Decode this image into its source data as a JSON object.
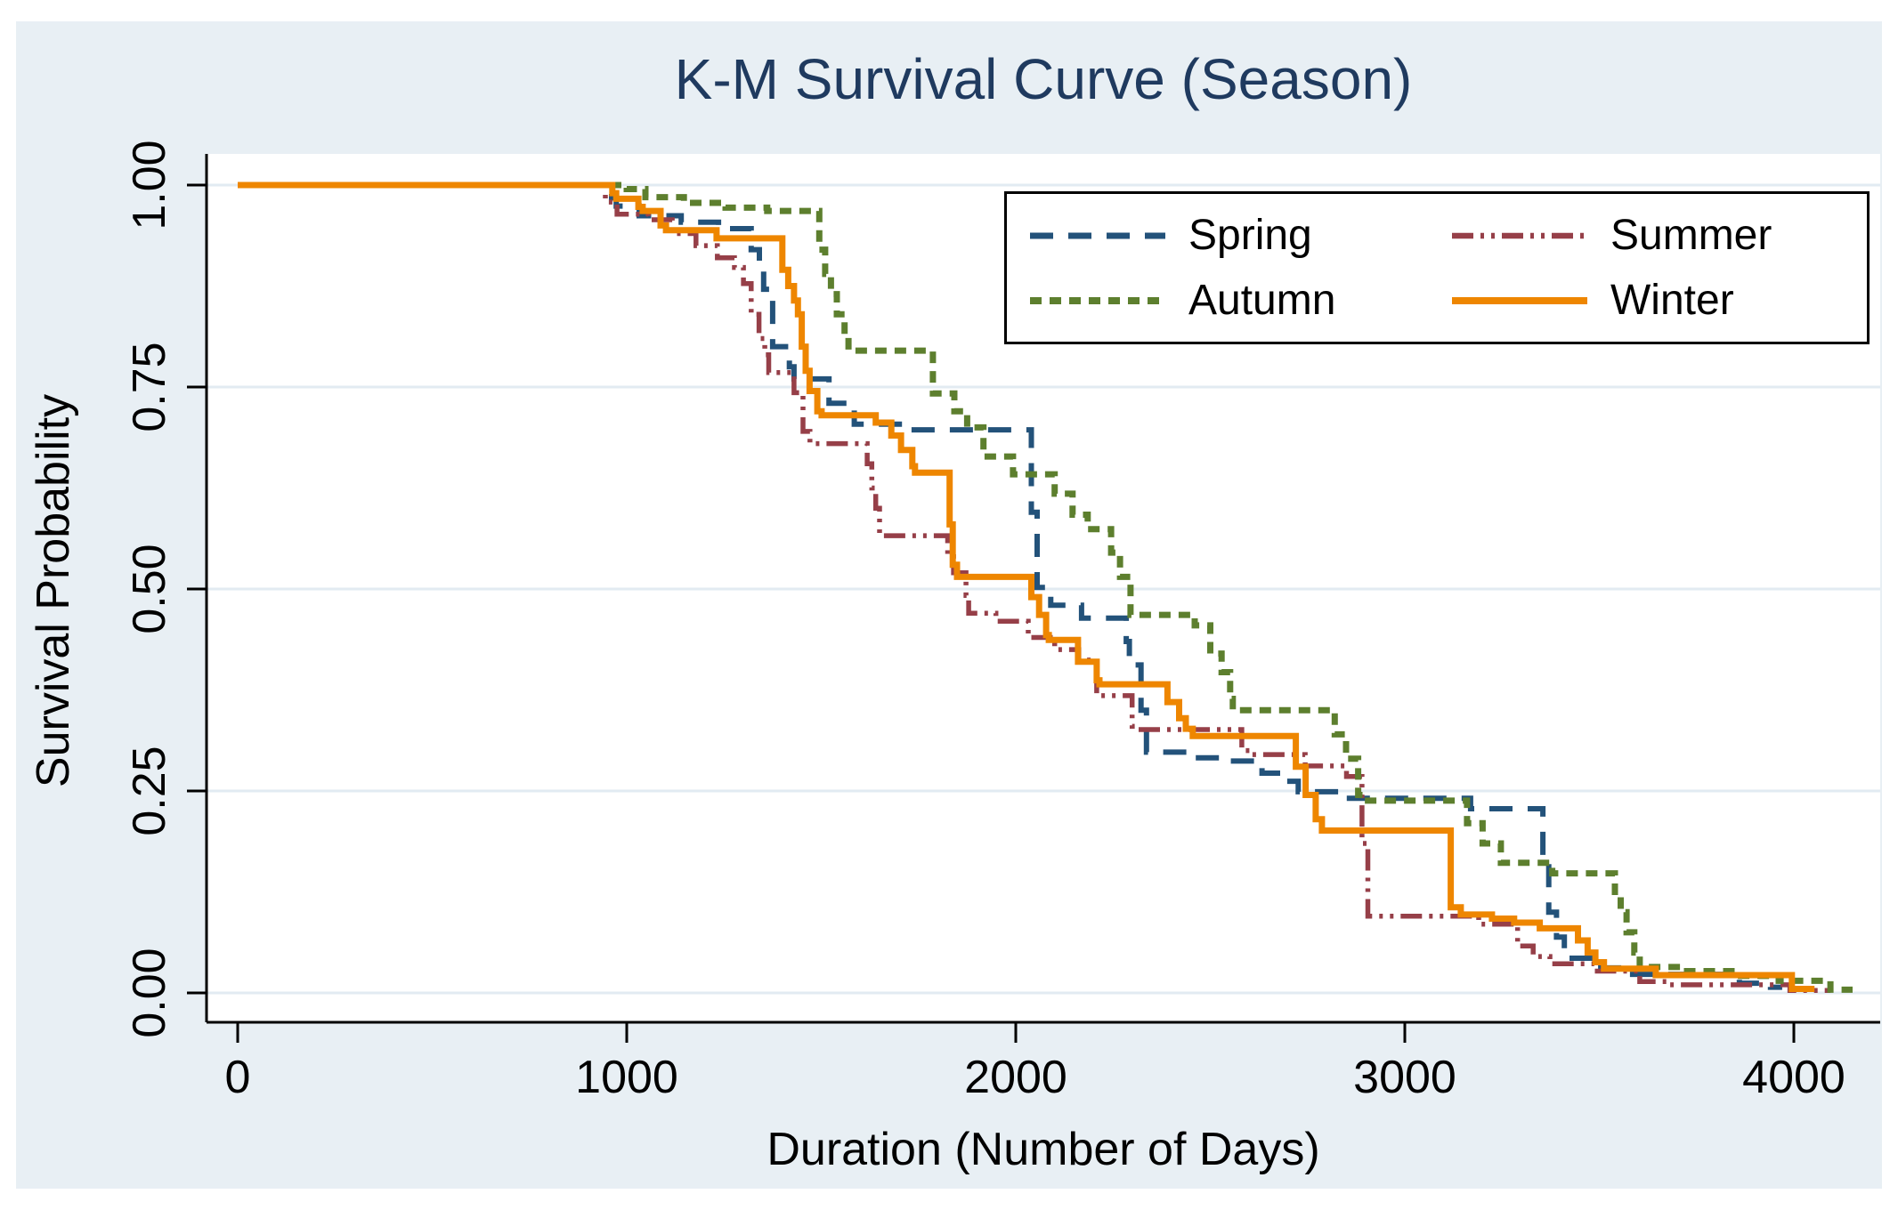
{
  "title": "K-M Survival Curve (Season)",
  "axes": {
    "x": {
      "label": "Duration (Number of Days)",
      "ticks": [
        "0",
        "1000",
        "2000",
        "3000",
        "4000"
      ],
      "tick_values": [
        0,
        1000,
        2000,
        3000,
        4000
      ],
      "range": [
        0,
        4229
      ]
    },
    "y": {
      "label": "Survival Probability",
      "ticks": [
        "0.00",
        "0.25",
        "0.50",
        "0.75",
        "1.00"
      ],
      "tick_values": [
        0,
        0.25,
        0.5,
        0.75,
        1.0
      ],
      "range": [
        0,
        1.04
      ]
    }
  },
  "legend": {
    "position": "top-right",
    "items": [
      {
        "label": "Spring"
      },
      {
        "label": "Summer"
      },
      {
        "label": "Autumn"
      },
      {
        "label": "Winter"
      }
    ]
  },
  "colors": {
    "page_bg": "#ffffff",
    "canvas_bg": "#e8eff4",
    "plot_bg": "#ffffff",
    "gridline": "#e2ebf2",
    "axis": "#000000",
    "title": "#1f3a5f",
    "spring": "#23527a",
    "summer": "#963f48",
    "autumn": "#5d7f2e",
    "winter": "#ee8600"
  },
  "chart_data": {
    "type": "line",
    "subtype": "kaplan-meier-step",
    "title": "K-M Survival Curve (Season)",
    "xlabel": "Duration (Number of Days)",
    "ylabel": "Survival Probability",
    "xlim": [
      0,
      4229
    ],
    "ylim": [
      0,
      1.04
    ],
    "grid": "horizontal",
    "legend_position": "top-right",
    "series": [
      {
        "name": "Spring",
        "color": "#23527a",
        "line_style": "long-dash",
        "end": 3970,
        "points": [
          [
            0,
            1.0
          ],
          [
            961,
            0.984
          ],
          [
            973,
            0.974
          ],
          [
            1032,
            0.962
          ],
          [
            1140,
            0.954
          ],
          [
            1236,
            0.946
          ],
          [
            1320,
            0.92
          ],
          [
            1341,
            0.9
          ],
          [
            1352,
            0.871
          ],
          [
            1375,
            0.8
          ],
          [
            1418,
            0.775
          ],
          [
            1430,
            0.76
          ],
          [
            1520,
            0.73
          ],
          [
            1585,
            0.704
          ],
          [
            1716,
            0.697
          ],
          [
            2040,
            0.595
          ],
          [
            2055,
            0.502
          ],
          [
            2090,
            0.48
          ],
          [
            2169,
            0.464
          ],
          [
            2284,
            0.435
          ],
          [
            2292,
            0.406
          ],
          [
            2322,
            0.35
          ],
          [
            2336,
            0.298
          ],
          [
            2440,
            0.291
          ],
          [
            2551,
            0.287
          ],
          [
            2633,
            0.272
          ],
          [
            2690,
            0.262
          ],
          [
            2726,
            0.249
          ],
          [
            2840,
            0.241
          ],
          [
            3169,
            0.228
          ],
          [
            3355,
            0.16
          ],
          [
            3370,
            0.1
          ],
          [
            3390,
            0.069
          ],
          [
            3410,
            0.043
          ],
          [
            3476,
            0.031
          ],
          [
            3560,
            0.023
          ],
          [
            3860,
            0.012
          ],
          [
            3940,
            0.007
          ]
        ]
      },
      {
        "name": "Summer",
        "color": "#963f48",
        "line_style": "dash-dot-dot",
        "end": 4094,
        "points": [
          [
            0,
            1.0
          ],
          [
            945,
            0.979
          ],
          [
            975,
            0.964
          ],
          [
            1055,
            0.957
          ],
          [
            1117,
            0.94
          ],
          [
            1178,
            0.925
          ],
          [
            1233,
            0.91
          ],
          [
            1277,
            0.898
          ],
          [
            1300,
            0.878
          ],
          [
            1320,
            0.84
          ],
          [
            1340,
            0.81
          ],
          [
            1355,
            0.79
          ],
          [
            1365,
            0.768
          ],
          [
            1430,
            0.743
          ],
          [
            1453,
            0.695
          ],
          [
            1471,
            0.68
          ],
          [
            1618,
            0.655
          ],
          [
            1630,
            0.625
          ],
          [
            1640,
            0.6
          ],
          [
            1650,
            0.566
          ],
          [
            1825,
            0.54
          ],
          [
            1840,
            0.52
          ],
          [
            1872,
            0.492
          ],
          [
            1879,
            0.47
          ],
          [
            1949,
            0.46
          ],
          [
            2032,
            0.44
          ],
          [
            2100,
            0.425
          ],
          [
            2162,
            0.412
          ],
          [
            2208,
            0.368
          ],
          [
            2299,
            0.33
          ],
          [
            2306,
            0.326
          ],
          [
            2581,
            0.3
          ],
          [
            2604,
            0.295
          ],
          [
            2744,
            0.281
          ],
          [
            2850,
            0.268
          ],
          [
            2890,
            0.185
          ],
          [
            2905,
            0.095
          ],
          [
            3190,
            0.085
          ],
          [
            3290,
            0.058
          ],
          [
            3330,
            0.045
          ],
          [
            3373,
            0.036
          ],
          [
            3487,
            0.027
          ],
          [
            3604,
            0.014
          ],
          [
            3680,
            0.01
          ],
          [
            3990,
            0.003
          ]
        ]
      },
      {
        "name": "Autumn",
        "color": "#5d7f2e",
        "line_style": "short-dash",
        "end": 4151,
        "points": [
          [
            0,
            1.0
          ],
          [
            1000,
            0.995
          ],
          [
            1048,
            0.985
          ],
          [
            1147,
            0.978
          ],
          [
            1254,
            0.972
          ],
          [
            1361,
            0.968
          ],
          [
            1495,
            0.92
          ],
          [
            1510,
            0.89
          ],
          [
            1525,
            0.865
          ],
          [
            1540,
            0.84
          ],
          [
            1560,
            0.815
          ],
          [
            1570,
            0.795
          ],
          [
            1787,
            0.742
          ],
          [
            1842,
            0.72
          ],
          [
            1875,
            0.7
          ],
          [
            1917,
            0.664
          ],
          [
            1993,
            0.642
          ],
          [
            2100,
            0.618
          ],
          [
            2146,
            0.592
          ],
          [
            2185,
            0.574
          ],
          [
            2245,
            0.545
          ],
          [
            2268,
            0.515
          ],
          [
            2295,
            0.468
          ],
          [
            2460,
            0.455
          ],
          [
            2500,
            0.42
          ],
          [
            2529,
            0.397
          ],
          [
            2551,
            0.364
          ],
          [
            2558,
            0.35
          ],
          [
            2820,
            0.32
          ],
          [
            2849,
            0.29
          ],
          [
            2880,
            0.245
          ],
          [
            2895,
            0.238
          ],
          [
            3160,
            0.21
          ],
          [
            3200,
            0.185
          ],
          [
            3247,
            0.161
          ],
          [
            3379,
            0.148
          ],
          [
            3540,
            0.12
          ],
          [
            3555,
            0.1
          ],
          [
            3570,
            0.075
          ],
          [
            3590,
            0.05
          ],
          [
            3604,
            0.032
          ],
          [
            3712,
            0.027
          ],
          [
            3854,
            0.021
          ],
          [
            3961,
            0.015
          ],
          [
            4094,
            0.004
          ]
        ]
      },
      {
        "name": "Winter",
        "color": "#ee8600",
        "line_style": "solid",
        "end": 4053,
        "points": [
          [
            0,
            1.0
          ],
          [
            963,
            0.99
          ],
          [
            973,
            0.983
          ],
          [
            1030,
            0.973
          ],
          [
            1041,
            0.968
          ],
          [
            1087,
            0.95
          ],
          [
            1101,
            0.944
          ],
          [
            1231,
            0.934
          ],
          [
            1400,
            0.895
          ],
          [
            1415,
            0.875
          ],
          [
            1430,
            0.857
          ],
          [
            1440,
            0.84
          ],
          [
            1450,
            0.8
          ],
          [
            1460,
            0.77
          ],
          [
            1470,
            0.745
          ],
          [
            1490,
            0.72
          ],
          [
            1501,
            0.715
          ],
          [
            1640,
            0.706
          ],
          [
            1680,
            0.69
          ],
          [
            1705,
            0.672
          ],
          [
            1734,
            0.652
          ],
          [
            1741,
            0.644
          ],
          [
            1830,
            0.58
          ],
          [
            1838,
            0.53
          ],
          [
            1849,
            0.515
          ],
          [
            2040,
            0.49
          ],
          [
            2060,
            0.468
          ],
          [
            2078,
            0.443
          ],
          [
            2085,
            0.437
          ],
          [
            2160,
            0.41
          ],
          [
            2208,
            0.387
          ],
          [
            2215,
            0.382
          ],
          [
            2390,
            0.36
          ],
          [
            2420,
            0.34
          ],
          [
            2437,
            0.327
          ],
          [
            2455,
            0.318
          ],
          [
            2720,
            0.28
          ],
          [
            2745,
            0.245
          ],
          [
            2771,
            0.215
          ],
          [
            2787,
            0.201
          ],
          [
            3118,
            0.106
          ],
          [
            3144,
            0.097
          ],
          [
            3224,
            0.092
          ],
          [
            3281,
            0.087
          ],
          [
            3347,
            0.08
          ],
          [
            3445,
            0.065
          ],
          [
            3470,
            0.05
          ],
          [
            3490,
            0.038
          ],
          [
            3512,
            0.03
          ],
          [
            3645,
            0.022
          ],
          [
            3995,
            0.005
          ]
        ]
      }
    ]
  }
}
